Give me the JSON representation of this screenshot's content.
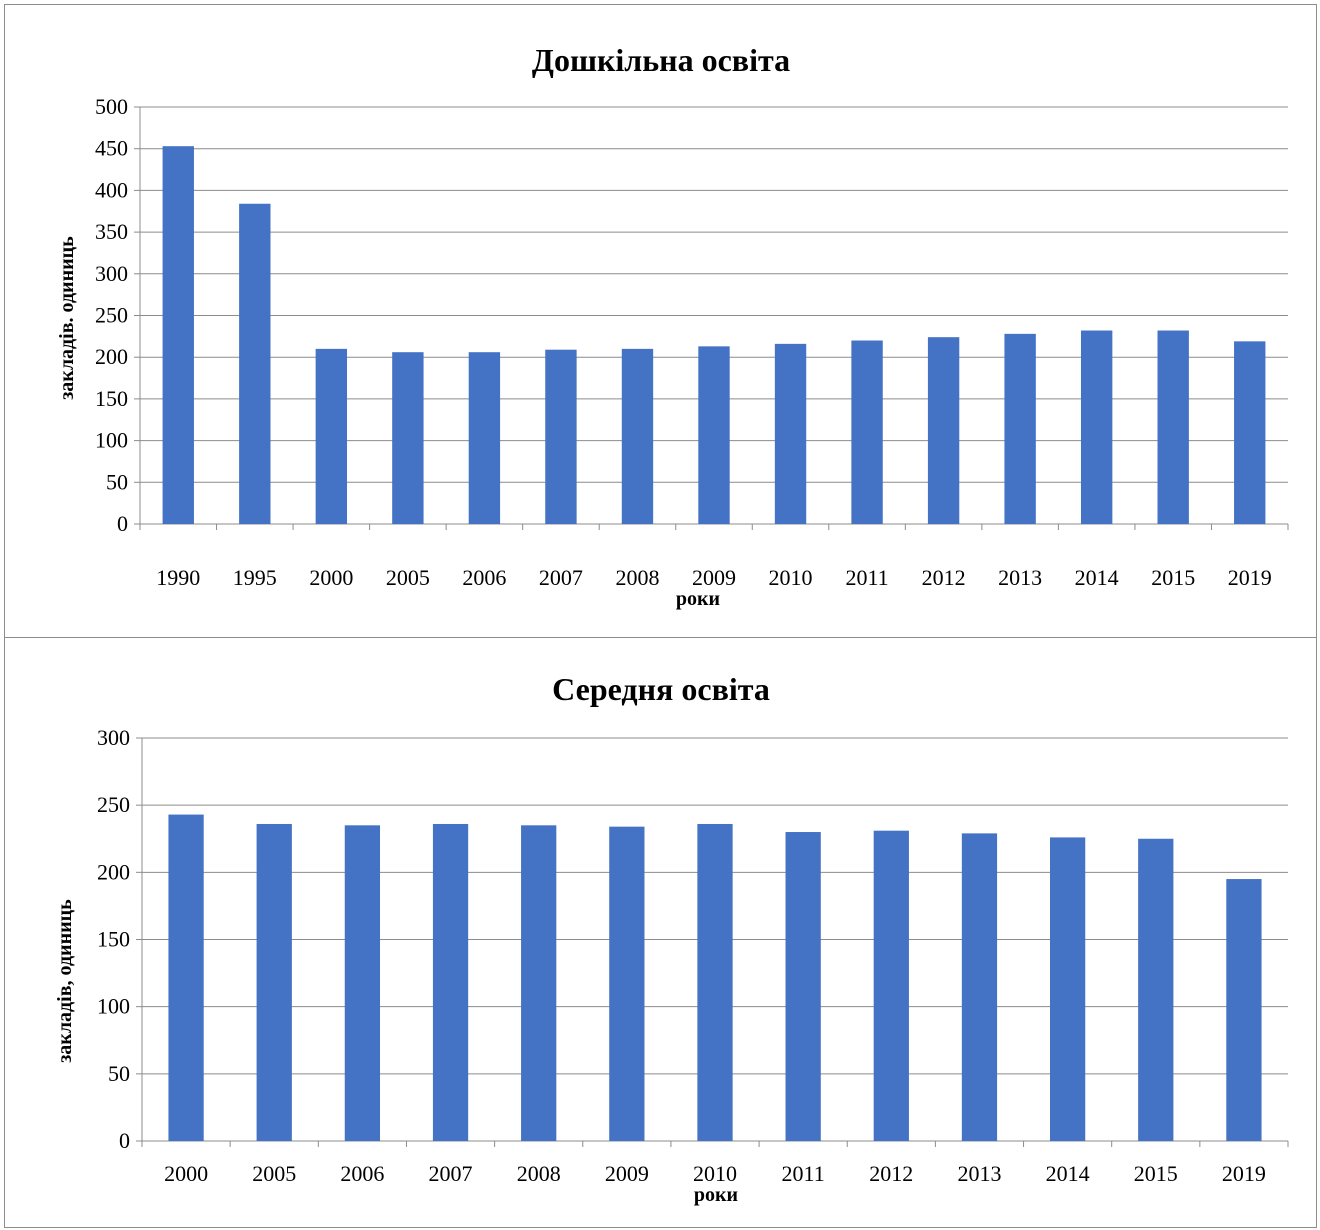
{
  "chart_data": [
    {
      "id": "preschool",
      "type": "bar",
      "title": "Дошкільна освіта",
      "xlabel": "роки",
      "ylabel": "закладів. одиниць",
      "categories": [
        "1990",
        "1995",
        "2000",
        "2005",
        "2006",
        "2007",
        "2008",
        "2009",
        "2010",
        "2011",
        "2012",
        "2013",
        "2014",
        "2015",
        "2019"
      ],
      "values": [
        453,
        384,
        210,
        206,
        206,
        209,
        210,
        213,
        216,
        220,
        224,
        228,
        232,
        232,
        219
      ],
      "ylim": [
        0,
        500
      ],
      "yticks": [
        0,
        50,
        100,
        150,
        200,
        250,
        300,
        350,
        400,
        450,
        500
      ],
      "grid": true,
      "color": "#4472C4"
    },
    {
      "id": "secondary",
      "type": "bar",
      "title": "Середня освіта",
      "xlabel": "роки",
      "ylabel": "закладів, одиниць",
      "categories": [
        "2000",
        "2005",
        "2006",
        "2007",
        "2008",
        "2009",
        "2010",
        "2011",
        "2012",
        "2013",
        "2014",
        "2015",
        "2019"
      ],
      "values": [
        243,
        236,
        235,
        236,
        235,
        234,
        236,
        230,
        231,
        229,
        226,
        225,
        195
      ],
      "ylim": [
        0,
        300
      ],
      "yticks": [
        0,
        50,
        100,
        150,
        200,
        250,
        300
      ],
      "grid": true,
      "color": "#4472C4"
    }
  ]
}
